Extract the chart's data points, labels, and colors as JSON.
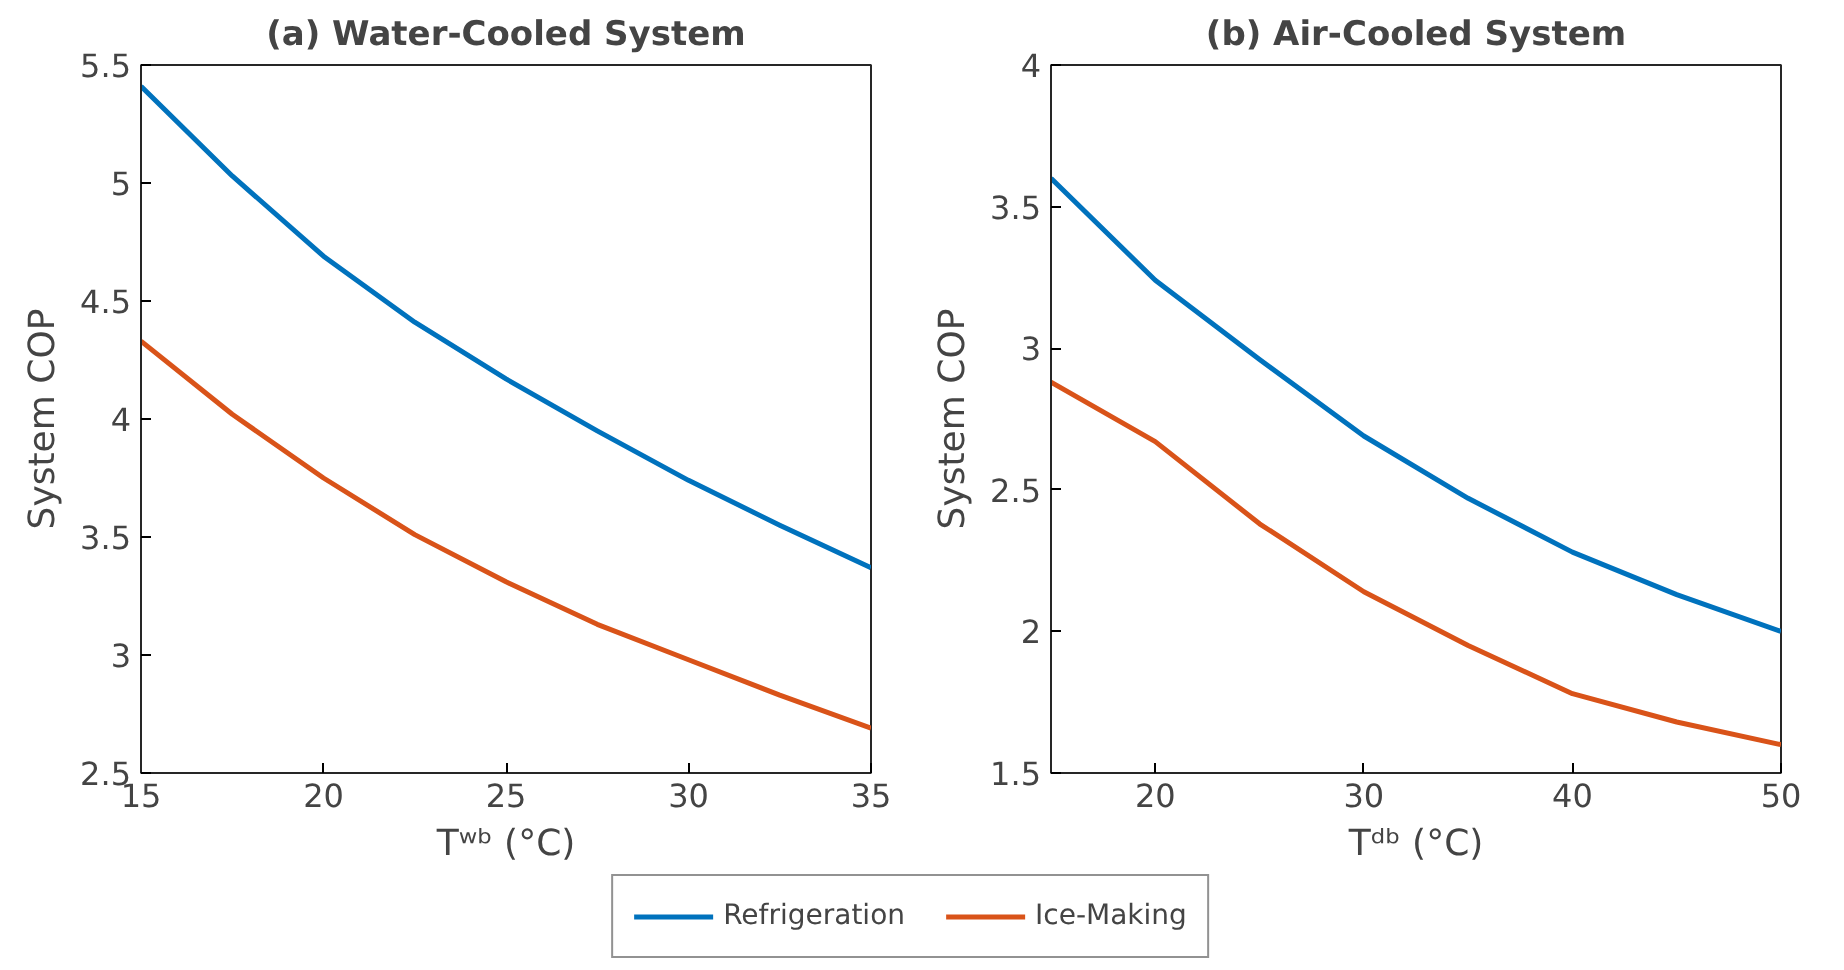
{
  "chart_data": [
    {
      "type": "line",
      "title": "(a) Water-Cooled System",
      "xlabel": "Tʷᵇ (°C)",
      "ylabel": "System COP",
      "x": [
        15,
        17.5,
        20,
        22.5,
        25,
        27.5,
        30,
        32.5,
        35
      ],
      "xlim": [
        15,
        35
      ],
      "ylim": [
        2.5,
        5.5
      ],
      "xticks": [
        15,
        20,
        25,
        30,
        35
      ],
      "yticks": [
        2.5,
        3,
        3.5,
        4,
        4.5,
        5,
        5.5
      ],
      "grid": false,
      "legend": "bottom",
      "series": [
        {
          "name": "Refrigeration",
          "color": "#0072bd",
          "values": [
            5.41,
            5.03,
            4.69,
            4.41,
            4.17,
            3.95,
            3.74,
            3.55,
            3.37
          ]
        },
        {
          "name": "Ice-Making",
          "color": "#d95319",
          "values": [
            4.33,
            4.02,
            3.75,
            3.51,
            3.31,
            3.13,
            2.98,
            2.83,
            2.69
          ]
        }
      ]
    },
    {
      "type": "line",
      "title": "(b) Air-Cooled System",
      "xlabel": "Tᵈᵇ (°C)",
      "ylabel": "System COP",
      "x": [
        15,
        20,
        25,
        30,
        35,
        40,
        45,
        50
      ],
      "xlim": [
        15,
        50
      ],
      "ylim": [
        1.5,
        4
      ],
      "xticks": [
        20,
        30,
        40,
        50
      ],
      "yticks": [
        1.5,
        2,
        2.5,
        3,
        3.5,
        4
      ],
      "grid": false,
      "series": [
        {
          "color": "#0072bd",
          "values": [
            3.6,
            3.24,
            2.96,
            2.69,
            2.47,
            2.28,
            2.13,
            2.0
          ]
        },
        {
          "color": "#d95319",
          "values": [
            2.88,
            2.67,
            2.38,
            2.14,
            1.95,
            1.78,
            1.68,
            1.6
          ]
        }
      ]
    }
  ]
}
